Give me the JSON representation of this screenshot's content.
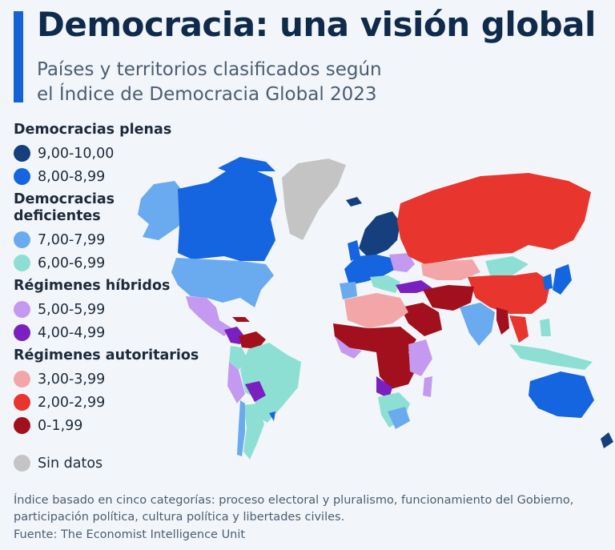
{
  "header": {
    "title": "Democracia: una visión global",
    "subtitle_line1": "Países y territorios clasificados según",
    "subtitle_line2": "el Índice de Democracia Global 2023"
  },
  "legend": {
    "groups": [
      {
        "title": "Democracias plenas",
        "items": [
          {
            "label": "9,00-10,00",
            "color": "#163f7e"
          },
          {
            "label": "8,00-8,99",
            "color": "#1565e0"
          }
        ]
      },
      {
        "title_line1": "Democracias",
        "title_line2": "deficientes",
        "items": [
          {
            "label": "7,00-7,99",
            "color": "#6aaaee"
          },
          {
            "label": "6,00-6,99",
            "color": "#8edfd3"
          }
        ]
      },
      {
        "title": "Régimenes híbridos",
        "items": [
          {
            "label": "5,00-5,99",
            "color": "#c49af0"
          },
          {
            "label": "4,00-4,99",
            "color": "#7a1fc0"
          }
        ]
      },
      {
        "title": "Régimenes autoritarios",
        "items": [
          {
            "label": "3,00-3,99",
            "color": "#f3a6a8"
          },
          {
            "label": "2,00-2,99",
            "color": "#e8352e"
          },
          {
            "label": "0-1,99",
            "color": "#a1101c"
          }
        ]
      }
    ],
    "no_data": {
      "label": "Sin datos",
      "color": "#c4c4c4"
    }
  },
  "footer": {
    "note": "Índice basado en cinco categorías: proceso electoral y pluralismo, funcionamiento del Gobierno, participación política, cultura política y libertades civiles.",
    "source": "Fuente: The Economist Intelligence Unit"
  }
}
